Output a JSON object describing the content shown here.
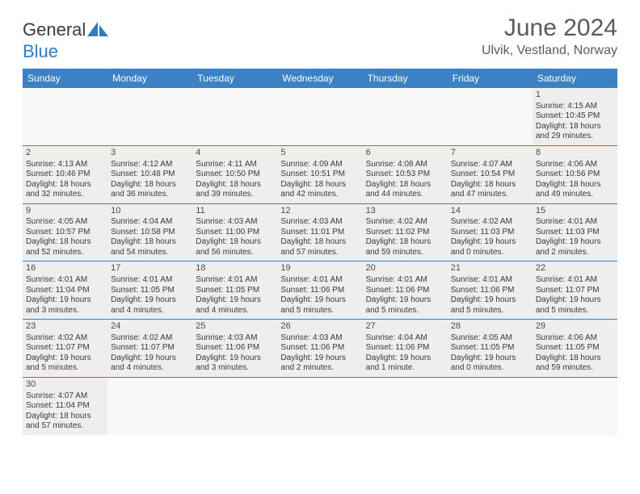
{
  "header": {
    "logo_general": "General",
    "logo_blue": "Blue",
    "month_title": "June 2024",
    "location": "Ulvik, Vestland, Norway"
  },
  "colors": {
    "header_bg": "#3b82c4",
    "header_text": "#ffffff",
    "cell_filled_bg": "#eeeeee",
    "cell_empty_bg": "#f8f8f8",
    "text": "#3a3a3a",
    "border": "#3b82c4"
  },
  "day_names": [
    "Sunday",
    "Monday",
    "Tuesday",
    "Wednesday",
    "Thursday",
    "Friday",
    "Saturday"
  ],
  "weeks": [
    [
      {
        "empty": true
      },
      {
        "empty": true
      },
      {
        "empty": true
      },
      {
        "empty": true
      },
      {
        "empty": true
      },
      {
        "empty": true
      },
      {
        "day": "1",
        "sunrise": "Sunrise: 4:15 AM",
        "sunset": "Sunset: 10:45 PM",
        "daylight1": "Daylight: 18 hours",
        "daylight2": "and 29 minutes."
      }
    ],
    [
      {
        "day": "2",
        "sunrise": "Sunrise: 4:13 AM",
        "sunset": "Sunset: 10:46 PM",
        "daylight1": "Daylight: 18 hours",
        "daylight2": "and 32 minutes."
      },
      {
        "day": "3",
        "sunrise": "Sunrise: 4:12 AM",
        "sunset": "Sunset: 10:48 PM",
        "daylight1": "Daylight: 18 hours",
        "daylight2": "and 36 minutes."
      },
      {
        "day": "4",
        "sunrise": "Sunrise: 4:11 AM",
        "sunset": "Sunset: 10:50 PM",
        "daylight1": "Daylight: 18 hours",
        "daylight2": "and 39 minutes."
      },
      {
        "day": "5",
        "sunrise": "Sunrise: 4:09 AM",
        "sunset": "Sunset: 10:51 PM",
        "daylight1": "Daylight: 18 hours",
        "daylight2": "and 42 minutes."
      },
      {
        "day": "6",
        "sunrise": "Sunrise: 4:08 AM",
        "sunset": "Sunset: 10:53 PM",
        "daylight1": "Daylight: 18 hours",
        "daylight2": "and 44 minutes."
      },
      {
        "day": "7",
        "sunrise": "Sunrise: 4:07 AM",
        "sunset": "Sunset: 10:54 PM",
        "daylight1": "Daylight: 18 hours",
        "daylight2": "and 47 minutes."
      },
      {
        "day": "8",
        "sunrise": "Sunrise: 4:06 AM",
        "sunset": "Sunset: 10:56 PM",
        "daylight1": "Daylight: 18 hours",
        "daylight2": "and 49 minutes."
      }
    ],
    [
      {
        "day": "9",
        "sunrise": "Sunrise: 4:05 AM",
        "sunset": "Sunset: 10:57 PM",
        "daylight1": "Daylight: 18 hours",
        "daylight2": "and 52 minutes."
      },
      {
        "day": "10",
        "sunrise": "Sunrise: 4:04 AM",
        "sunset": "Sunset: 10:58 PM",
        "daylight1": "Daylight: 18 hours",
        "daylight2": "and 54 minutes."
      },
      {
        "day": "11",
        "sunrise": "Sunrise: 4:03 AM",
        "sunset": "Sunset: 11:00 PM",
        "daylight1": "Daylight: 18 hours",
        "daylight2": "and 56 minutes."
      },
      {
        "day": "12",
        "sunrise": "Sunrise: 4:03 AM",
        "sunset": "Sunset: 11:01 PM",
        "daylight1": "Daylight: 18 hours",
        "daylight2": "and 57 minutes."
      },
      {
        "day": "13",
        "sunrise": "Sunrise: 4:02 AM",
        "sunset": "Sunset: 11:02 PM",
        "daylight1": "Daylight: 18 hours",
        "daylight2": "and 59 minutes."
      },
      {
        "day": "14",
        "sunrise": "Sunrise: 4:02 AM",
        "sunset": "Sunset: 11:03 PM",
        "daylight1": "Daylight: 19 hours",
        "daylight2": "and 0 minutes."
      },
      {
        "day": "15",
        "sunrise": "Sunrise: 4:01 AM",
        "sunset": "Sunset: 11:03 PM",
        "daylight1": "Daylight: 19 hours",
        "daylight2": "and 2 minutes."
      }
    ],
    [
      {
        "day": "16",
        "sunrise": "Sunrise: 4:01 AM",
        "sunset": "Sunset: 11:04 PM",
        "daylight1": "Daylight: 19 hours",
        "daylight2": "and 3 minutes."
      },
      {
        "day": "17",
        "sunrise": "Sunrise: 4:01 AM",
        "sunset": "Sunset: 11:05 PM",
        "daylight1": "Daylight: 19 hours",
        "daylight2": "and 4 minutes."
      },
      {
        "day": "18",
        "sunrise": "Sunrise: 4:01 AM",
        "sunset": "Sunset: 11:05 PM",
        "daylight1": "Daylight: 19 hours",
        "daylight2": "and 4 minutes."
      },
      {
        "day": "19",
        "sunrise": "Sunrise: 4:01 AM",
        "sunset": "Sunset: 11:06 PM",
        "daylight1": "Daylight: 19 hours",
        "daylight2": "and 5 minutes."
      },
      {
        "day": "20",
        "sunrise": "Sunrise: 4:01 AM",
        "sunset": "Sunset: 11:06 PM",
        "daylight1": "Daylight: 19 hours",
        "daylight2": "and 5 minutes."
      },
      {
        "day": "21",
        "sunrise": "Sunrise: 4:01 AM",
        "sunset": "Sunset: 11:06 PM",
        "daylight1": "Daylight: 19 hours",
        "daylight2": "and 5 minutes."
      },
      {
        "day": "22",
        "sunrise": "Sunrise: 4:01 AM",
        "sunset": "Sunset: 11:07 PM",
        "daylight1": "Daylight: 19 hours",
        "daylight2": "and 5 minutes."
      }
    ],
    [
      {
        "day": "23",
        "sunrise": "Sunrise: 4:02 AM",
        "sunset": "Sunset: 11:07 PM",
        "daylight1": "Daylight: 19 hours",
        "daylight2": "and 5 minutes."
      },
      {
        "day": "24",
        "sunrise": "Sunrise: 4:02 AM",
        "sunset": "Sunset: 11:07 PM",
        "daylight1": "Daylight: 19 hours",
        "daylight2": "and 4 minutes."
      },
      {
        "day": "25",
        "sunrise": "Sunrise: 4:03 AM",
        "sunset": "Sunset: 11:06 PM",
        "daylight1": "Daylight: 19 hours",
        "daylight2": "and 3 minutes."
      },
      {
        "day": "26",
        "sunrise": "Sunrise: 4:03 AM",
        "sunset": "Sunset: 11:06 PM",
        "daylight1": "Daylight: 19 hours",
        "daylight2": "and 2 minutes."
      },
      {
        "day": "27",
        "sunrise": "Sunrise: 4:04 AM",
        "sunset": "Sunset: 11:06 PM",
        "daylight1": "Daylight: 19 hours",
        "daylight2": "and 1 minute."
      },
      {
        "day": "28",
        "sunrise": "Sunrise: 4:05 AM",
        "sunset": "Sunset: 11:05 PM",
        "daylight1": "Daylight: 19 hours",
        "daylight2": "and 0 minutes."
      },
      {
        "day": "29",
        "sunrise": "Sunrise: 4:06 AM",
        "sunset": "Sunset: 11:05 PM",
        "daylight1": "Daylight: 18 hours",
        "daylight2": "and 59 minutes."
      }
    ],
    [
      {
        "day": "30",
        "sunrise": "Sunrise: 4:07 AM",
        "sunset": "Sunset: 11:04 PM",
        "daylight1": "Daylight: 18 hours",
        "daylight2": "and 57 minutes."
      },
      {
        "empty": true
      },
      {
        "empty": true
      },
      {
        "empty": true
      },
      {
        "empty": true
      },
      {
        "empty": true
      },
      {
        "empty": true
      }
    ]
  ]
}
